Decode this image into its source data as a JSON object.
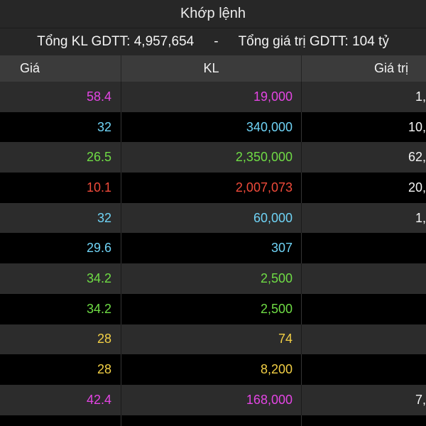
{
  "title": "Khớp lệnh",
  "summary": {
    "total_volume_label": "Tổng KL GDTT:",
    "total_volume": "4,957,654",
    "separator": "-",
    "total_value_label": "Tổng giá trị GDTT:",
    "total_value": "104 tỷ"
  },
  "columns": {
    "price": "Giá",
    "volume": "KL",
    "value": "Giá trị"
  },
  "rows": [
    {
      "price": "58.4",
      "volume": "19,000",
      "value": "1,",
      "color": "#e445e4"
    },
    {
      "price": "32",
      "volume": "340,000",
      "value": "10,",
      "color": "#6fd3f5"
    },
    {
      "price": "26.5",
      "volume": "2,350,000",
      "value": "62,",
      "color": "#6fdc45"
    },
    {
      "price": "10.1",
      "volume": "2,007,073",
      "value": "20,",
      "color": "#ef4a3a"
    },
    {
      "price": "32",
      "volume": "60,000",
      "value": "1,",
      "color": "#6fd3f5"
    },
    {
      "price": "29.6",
      "volume": "307",
      "color": "#6fd3f5"
    },
    {
      "price": "34.2",
      "volume": "2,500",
      "color": "#6fdc45"
    },
    {
      "price": "34.2",
      "volume": "2,500",
      "color": "#6fdc45"
    },
    {
      "price": "28",
      "volume": "74",
      "color": "#f2cf45"
    },
    {
      "price": "28",
      "volume": "8,200",
      "color": "#f2cf45"
    },
    {
      "price": "42.4",
      "volume": "168,000",
      "value": "7,",
      "color": "#e445e4"
    }
  ]
}
